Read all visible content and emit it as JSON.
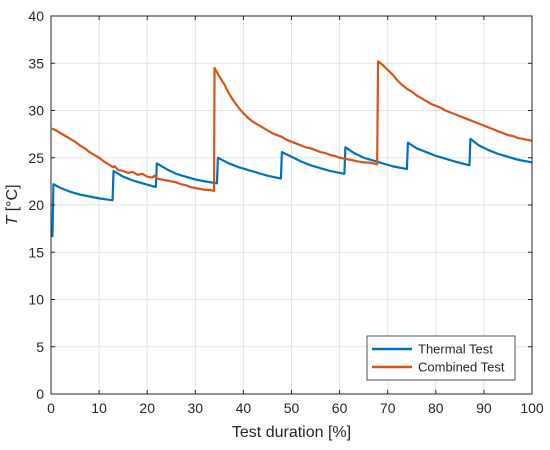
{
  "chart_data": {
    "type": "line",
    "xlabel": "Test duration [%]",
    "ylabel_italic": "T",
    "ylabel_rest": " [°C]",
    "xlim": [
      0,
      100
    ],
    "ylim": [
      0,
      40
    ],
    "xticks": [
      0,
      10,
      20,
      30,
      40,
      50,
      60,
      70,
      80,
      90,
      100
    ],
    "yticks": [
      0,
      5,
      10,
      15,
      20,
      25,
      30,
      35,
      40
    ],
    "grid": true,
    "legend_position": "bottom-right",
    "series": [
      {
        "name": "Thermal Test",
        "color": "#0072BD",
        "points": [
          [
            0.3,
            16.6
          ],
          [
            0.5,
            22.2
          ],
          [
            2,
            21.8
          ],
          [
            4,
            21.4
          ],
          [
            6,
            21.1
          ],
          [
            8,
            20.9
          ],
          [
            10,
            20.7
          ],
          [
            12.8,
            20.5
          ],
          [
            13.0,
            23.6
          ],
          [
            15,
            23.0
          ],
          [
            17,
            22.6
          ],
          [
            19,
            22.3
          ],
          [
            21.8,
            21.9
          ],
          [
            22.0,
            24.4
          ],
          [
            24,
            23.8
          ],
          [
            26,
            23.3
          ],
          [
            28,
            23.0
          ],
          [
            30,
            22.7
          ],
          [
            32,
            22.5
          ],
          [
            34.5,
            22.3
          ],
          [
            34.7,
            25.0
          ],
          [
            37,
            24.4
          ],
          [
            39,
            24.0
          ],
          [
            41,
            23.7
          ],
          [
            43,
            23.4
          ],
          [
            45,
            23.1
          ],
          [
            47.8,
            22.8
          ],
          [
            48.0,
            25.6
          ],
          [
            50,
            25.1
          ],
          [
            52,
            24.6
          ],
          [
            54,
            24.2
          ],
          [
            56,
            23.9
          ],
          [
            58,
            23.6
          ],
          [
            61.0,
            23.3
          ],
          [
            61.2,
            26.1
          ],
          [
            63,
            25.5
          ],
          [
            65,
            25.0
          ],
          [
            67,
            24.7
          ],
          [
            69,
            24.4
          ],
          [
            71,
            24.1
          ],
          [
            74.0,
            23.8
          ],
          [
            74.2,
            26.6
          ],
          [
            76,
            26.0
          ],
          [
            78,
            25.6
          ],
          [
            80,
            25.2
          ],
          [
            82,
            24.9
          ],
          [
            84,
            24.6
          ],
          [
            87.0,
            24.2
          ],
          [
            87.2,
            27.0
          ],
          [
            89,
            26.3
          ],
          [
            91,
            25.8
          ],
          [
            93,
            25.4
          ],
          [
            95,
            25.1
          ],
          [
            97,
            24.8
          ],
          [
            100,
            24.5
          ]
        ]
      },
      {
        "name": "Combined Test",
        "color": "#D95319",
        "points": [
          [
            0.2,
            28.1
          ],
          [
            1,
            27.9
          ],
          [
            2,
            27.6
          ],
          [
            3,
            27.3
          ],
          [
            4,
            27.0
          ],
          [
            5,
            26.7
          ],
          [
            6,
            26.3
          ],
          [
            7,
            26.0
          ],
          [
            8,
            25.6
          ],
          [
            9,
            25.3
          ],
          [
            10,
            25.0
          ],
          [
            11,
            24.6
          ],
          [
            12,
            24.3
          ],
          [
            12.9,
            24.0
          ],
          [
            13.2,
            24.1
          ],
          [
            14,
            23.7
          ],
          [
            15,
            23.6
          ],
          [
            16,
            23.4
          ],
          [
            17,
            23.5
          ],
          [
            18,
            23.2
          ],
          [
            19,
            23.3
          ],
          [
            20,
            23.0
          ],
          [
            21,
            22.9
          ],
          [
            21.5,
            23.1
          ],
          [
            22,
            22.8
          ],
          [
            23,
            22.7
          ],
          [
            24,
            22.6
          ],
          [
            25,
            22.5
          ],
          [
            26,
            22.4
          ],
          [
            27,
            22.2
          ],
          [
            28,
            22.1
          ],
          [
            29,
            21.9
          ],
          [
            30,
            21.8
          ],
          [
            31,
            21.7
          ],
          [
            32,
            21.6
          ],
          [
            33,
            21.6
          ],
          [
            33.9,
            21.5
          ],
          [
            34.0,
            34.5
          ],
          [
            35,
            33.6
          ],
          [
            36,
            32.8
          ],
          [
            37,
            31.8
          ],
          [
            38,
            31.0
          ],
          [
            39,
            30.3
          ],
          [
            40,
            29.7
          ],
          [
            41,
            29.2
          ],
          [
            42,
            28.8
          ],
          [
            43,
            28.5
          ],
          [
            44,
            28.2
          ],
          [
            45,
            27.9
          ],
          [
            46,
            27.6
          ],
          [
            47,
            27.4
          ],
          [
            48,
            27.2
          ],
          [
            49,
            26.9
          ],
          [
            50,
            26.7
          ],
          [
            51,
            26.5
          ],
          [
            52,
            26.3
          ],
          [
            53,
            26.1
          ],
          [
            54,
            26.0
          ],
          [
            55,
            25.8
          ],
          [
            56,
            25.6
          ],
          [
            57,
            25.5
          ],
          [
            58,
            25.3
          ],
          [
            59,
            25.2
          ],
          [
            60,
            25.0
          ],
          [
            61,
            24.9
          ],
          [
            62,
            24.8
          ],
          [
            63,
            24.7
          ],
          [
            64,
            24.6
          ],
          [
            65,
            24.5
          ],
          [
            66,
            24.5
          ],
          [
            67,
            24.4
          ],
          [
            67.8,
            24.3
          ],
          [
            68.0,
            35.2
          ],
          [
            69,
            34.8
          ],
          [
            70,
            34.3
          ],
          [
            71,
            33.8
          ],
          [
            72,
            33.2
          ],
          [
            73,
            32.7
          ],
          [
            74,
            32.3
          ],
          [
            75,
            32.0
          ],
          [
            76,
            31.6
          ],
          [
            77,
            31.3
          ],
          [
            78,
            31.0
          ],
          [
            79,
            30.7
          ],
          [
            80,
            30.5
          ],
          [
            81,
            30.3
          ],
          [
            82,
            30.0
          ],
          [
            83,
            29.8
          ],
          [
            84,
            29.6
          ],
          [
            85,
            29.4
          ],
          [
            86,
            29.2
          ],
          [
            87,
            29.0
          ],
          [
            88,
            28.8
          ],
          [
            89,
            28.6
          ],
          [
            90,
            28.4
          ],
          [
            91,
            28.2
          ],
          [
            92,
            28.0
          ],
          [
            93,
            27.8
          ],
          [
            94,
            27.6
          ],
          [
            95,
            27.4
          ],
          [
            96,
            27.3
          ],
          [
            97,
            27.1
          ],
          [
            98,
            27.0
          ],
          [
            99,
            26.9
          ],
          [
            100,
            26.8
          ]
        ]
      }
    ]
  }
}
